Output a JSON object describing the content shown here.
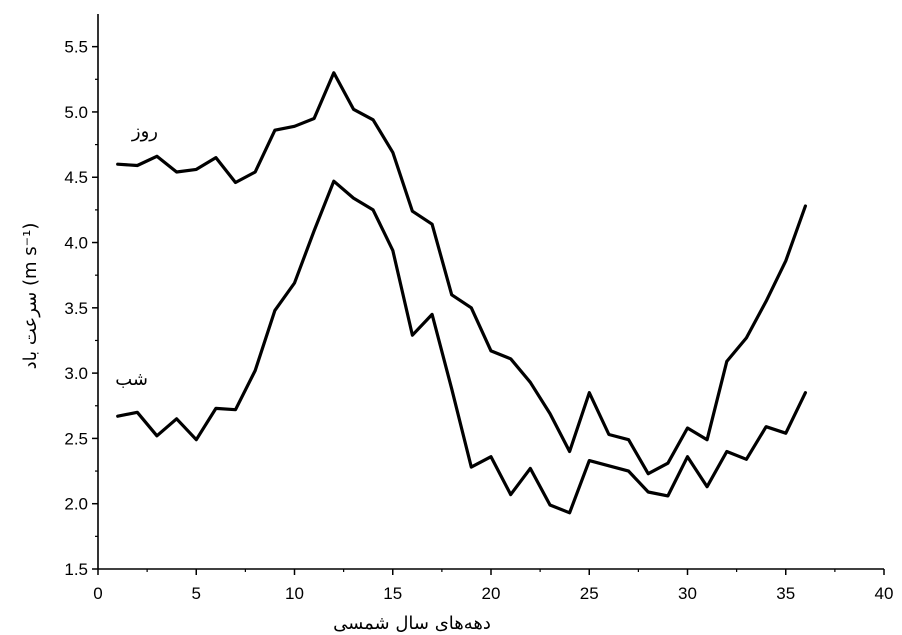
{
  "chart_data": {
    "type": "line",
    "xlabel": "دهه‌های سال شمسی",
    "ylabel": "سرعت باد (m s⁻¹)",
    "xlim": [
      0,
      40
    ],
    "ylim": [
      1.5,
      5.75
    ],
    "x_ticks": [
      0,
      5,
      10,
      15,
      20,
      25,
      30,
      35,
      40
    ],
    "y_ticks": [
      1.5,
      2.0,
      2.5,
      3.0,
      3.5,
      4.0,
      4.5,
      5.0,
      5.5
    ],
    "x_tick_labels": [
      "0",
      "5",
      "10",
      "15",
      "20",
      "25",
      "30",
      "35",
      "40"
    ],
    "y_tick_labels": [
      "1.5",
      "2.0",
      "2.5",
      "3.0",
      "3.5",
      "4.0",
      "4.5",
      "5.0",
      "5.5"
    ],
    "grid": false,
    "x": [
      1,
      2,
      3,
      4,
      5,
      6,
      7,
      8,
      9,
      10,
      11,
      12,
      13,
      14,
      15,
      16,
      17,
      18,
      19,
      20,
      21,
      22,
      23,
      24,
      25,
      26,
      27,
      28,
      29,
      30,
      31,
      32,
      33,
      34,
      35,
      36
    ],
    "series": [
      {
        "name": "روز",
        "values": [
          4.6,
          4.59,
          4.66,
          4.54,
          4.56,
          4.65,
          4.46,
          4.54,
          4.86,
          4.89,
          4.95,
          5.3,
          5.02,
          4.94,
          4.69,
          4.24,
          4.14,
          3.6,
          3.5,
          3.17,
          3.11,
          2.93,
          2.69,
          2.4,
          2.85,
          2.53,
          2.49,
          2.23,
          2.31,
          2.58,
          2.49,
          3.09,
          3.27,
          3.55,
          3.86,
          4.28
        ],
        "color": "#000000"
      },
      {
        "name": "شب",
        "values": [
          2.67,
          2.7,
          2.52,
          2.65,
          2.49,
          2.73,
          2.72,
          3.02,
          3.48,
          3.69,
          4.09,
          4.47,
          4.34,
          4.25,
          3.94,
          3.29,
          3.45,
          2.88,
          2.28,
          2.36,
          2.07,
          2.27,
          1.99,
          1.93,
          2.33,
          2.29,
          2.25,
          2.09,
          2.06,
          2.36,
          2.13,
          2.4,
          2.34,
          2.59,
          2.54,
          2.85
        ],
        "color": "#000000"
      }
    ]
  },
  "labels": {
    "day": "روز",
    "night": "شب"
  }
}
